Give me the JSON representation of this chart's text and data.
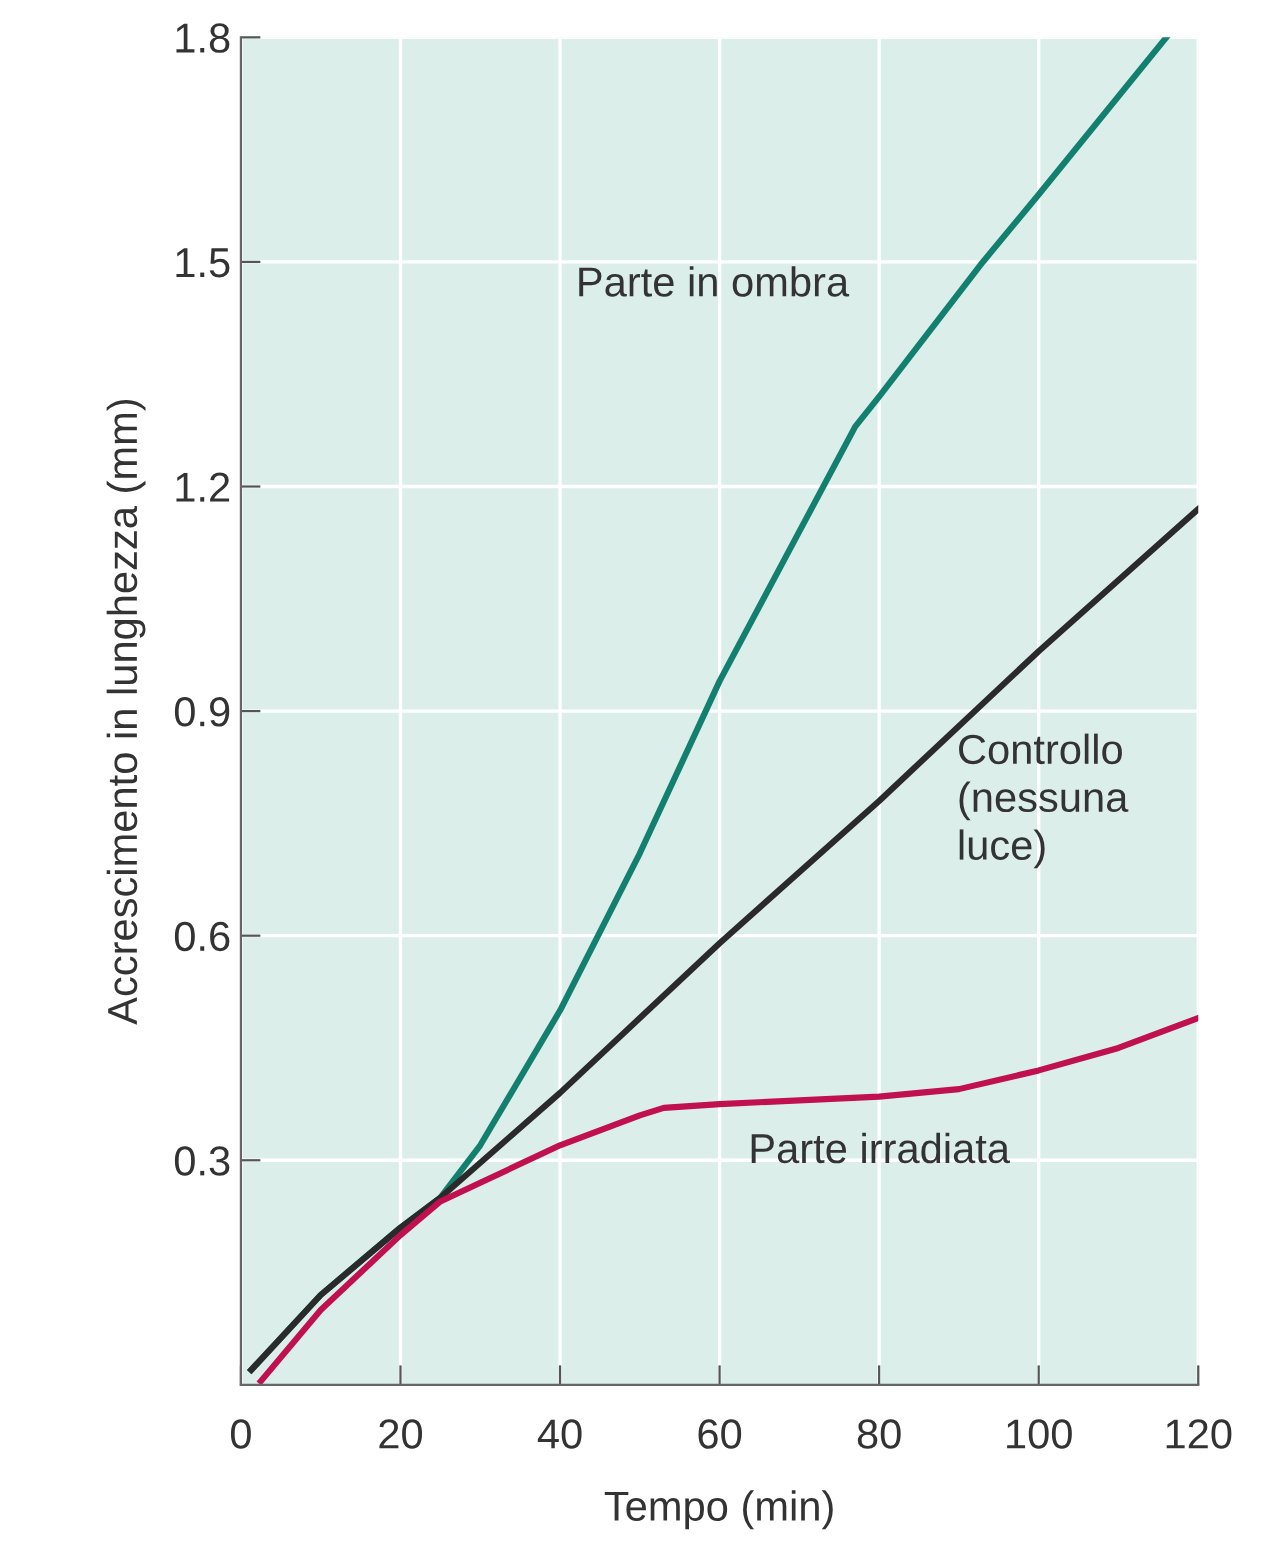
{
  "chart_data": {
    "type": "line",
    "xlabel": "Tempo (min)",
    "ylabel": "Accrescimento in lunghezza (mm)",
    "xlim": [
      0,
      120
    ],
    "xticks": [
      0,
      20,
      40,
      60,
      80,
      100,
      120
    ],
    "ylim": [
      0,
      1.8
    ],
    "yticks": [
      0.3,
      0.6,
      0.9,
      1.2,
      1.5,
      1.8
    ],
    "grid": true,
    "legend": false,
    "marker": "none",
    "line_style": "solid",
    "series": [
      {
        "name": "Parte in ombra",
        "color": "#127f6f",
        "x": [
          1.3,
          10,
          20,
          25,
          30,
          40,
          50,
          60,
          70,
          77,
          80,
          93,
          100,
          116
        ],
        "values": [
          0.02,
          0.12,
          0.21,
          0.25,
          0.32,
          0.5,
          0.71,
          0.94,
          1.14,
          1.28,
          1.32,
          1.5,
          1.59,
          1.8
        ]
      },
      {
        "name": "Controllo\n(nessuna\nluce)",
        "color": "#2a2a2a",
        "x": [
          1.3,
          10,
          20,
          25,
          40,
          60,
          80,
          100,
          120
        ],
        "values": [
          0.02,
          0.12,
          0.21,
          0.25,
          0.39,
          0.59,
          0.78,
          0.98,
          1.17
        ]
      },
      {
        "name": "Parte irradiata",
        "color": "#c0104f",
        "x": [
          2.5,
          10,
          20,
          25,
          30,
          40,
          50,
          53,
          60,
          80,
          90,
          100,
          110,
          120
        ],
        "values": [
          0.005,
          0.1,
          0.2,
          0.245,
          0.27,
          0.32,
          0.36,
          0.37,
          0.375,
          0.385,
          0.395,
          0.42,
          0.45,
          0.49
        ]
      }
    ]
  }
}
